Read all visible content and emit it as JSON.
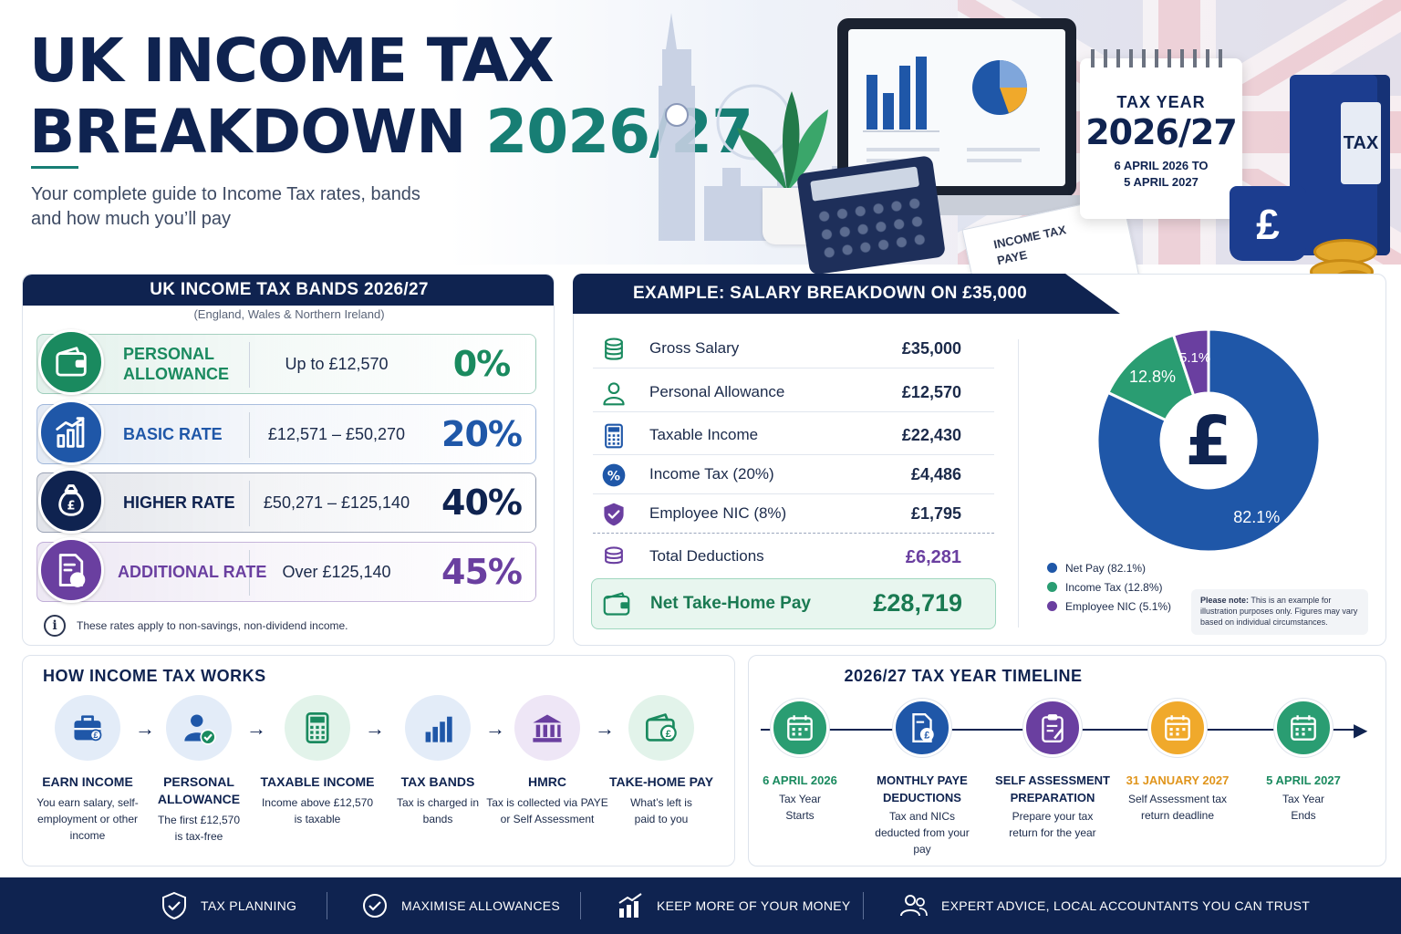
{
  "header": {
    "title_line1": "UK INCOME TAX",
    "title_line2": "BREAKDOWN",
    "title_year": "2026/27",
    "subtitle": "Your complete guide to Income Tax rates, bands and how much you’ll pay"
  },
  "illustration": {
    "calendar_title": "TAX YEAR",
    "calendar_year": "2026/27",
    "calendar_range_1": "6 APRIL 2026 TO",
    "calendar_range_2": "5 APRIL 2027",
    "binder_label": "TAX",
    "mug_symbol": "£",
    "coin_symbol": "£",
    "paper_line1": "INCOME TAX",
    "paper_line2": "PAYE"
  },
  "bands": {
    "title": "UK INCOME TAX BANDS 2026/27",
    "subtitle": "(England, Wales & Northern Ireland)",
    "rows": [
      {
        "name_1": "PERSONAL",
        "name_2": "ALLOWANCE",
        "range": "Up to £12,570",
        "rate": "0%",
        "color": "#1a8a5f",
        "icon": "wallet-icon"
      },
      {
        "name_1": "BASIC RATE",
        "name_2": "",
        "range": "£12,571 – £50,270",
        "rate": "20%",
        "color": "#1f57a8",
        "icon": "chart-growth-icon"
      },
      {
        "name_1": "HIGHER RATE",
        "name_2": "",
        "range": "£50,271 – £125,140",
        "rate": "40%",
        "color": "#0f2350",
        "icon": "money-bag-icon"
      },
      {
        "name_1": "ADDITIONAL RATE",
        "name_2": "",
        "range": "Over £125,140",
        "rate": "45%",
        "color": "#6a3fa0",
        "icon": "document-percent-icon"
      }
    ],
    "note": "These rates apply to non-savings, non-dividend income."
  },
  "example": {
    "title": "EXAMPLE: SALARY BREAKDOWN ON £35,000",
    "rows": [
      {
        "label": "Gross Salary",
        "value": "£35,000",
        "icon": "coins-icon"
      },
      {
        "label": "Personal Allowance",
        "value": "£12,570",
        "icon": "person-icon"
      },
      {
        "label": "Taxable Income",
        "value": "£22,430",
        "icon": "calculator-icon"
      },
      {
        "label": "Income Tax (20%)",
        "value": "£4,486",
        "icon": "percent-icon"
      },
      {
        "label": "Employee NIC (8%)",
        "value": "£1,795",
        "icon": "shield-check-icon"
      },
      {
        "label": "Total Deductions",
        "value": "£6,281",
        "icon": "coin-stack-icon"
      }
    ],
    "net_label": "Net Take-Home Pay",
    "net_value": "£28,719",
    "donut_center": "£",
    "note_bold": "Please note:",
    "note_text": "This is an example for illustration purposes only. Figures may vary based on individual circumstances."
  },
  "chart_data": {
    "type": "pie",
    "donut": true,
    "slices": [
      {
        "label": "Net Pay (82.1%)",
        "value": 82.1,
        "display": "82.1%",
        "color": "#1f57a8"
      },
      {
        "label": "Income Tax (12.8%)",
        "value": 12.8,
        "display": "12.8%",
        "color": "#2a9d72"
      },
      {
        "label": "Employee NIC (5.1%)",
        "value": 5.1,
        "display": "5.1%",
        "color": "#6a3fa0"
      }
    ],
    "legend_position": "bottom-left"
  },
  "how": {
    "title": "HOW INCOME TAX WORKS",
    "steps": [
      {
        "title": "EARN INCOME",
        "desc": "You earn salary, self-employment or other income",
        "color": "#1f57a8",
        "bg": "#e3ecf8",
        "icon": "briefcase-icon"
      },
      {
        "title": "PERSONAL ALLOWANCE",
        "desc": "The first £12,570 is tax-free",
        "color": "#1f57a8",
        "bg": "#e3ecf8",
        "icon": "person-check-icon"
      },
      {
        "title": "TAXABLE INCOME",
        "desc": "Income above £12,570 is taxable",
        "color": "#1a8a5f",
        "bg": "#e2f3ea",
        "icon": "calculator-icon"
      },
      {
        "title": "TAX BANDS",
        "desc": "Tax is charged in bands",
        "color": "#1f57a8",
        "bg": "#e3ecf8",
        "icon": "bar-chart-icon"
      },
      {
        "title": "HMRC",
        "desc": "Tax is collected via PAYE or Self Assessment",
        "color": "#6a3fa0",
        "bg": "#eee6f6",
        "icon": "bank-icon"
      },
      {
        "title": "TAKE-HOME PAY",
        "desc": "What’s left is paid to you",
        "color": "#1a8a5f",
        "bg": "#e2f3ea",
        "icon": "wallet-pound-icon"
      }
    ]
  },
  "timeline": {
    "title": "2026/27 TAX YEAR TIMELINE",
    "items": [
      {
        "title": "6 APRIL 2026",
        "desc": "Tax Year Starts",
        "color": "#2a9d72",
        "title_color": "#1a8a5f",
        "icon": "calendar-icon"
      },
      {
        "title": "MONTHLY PAYE DEDUCTIONS",
        "desc": "Tax and NICs deducted from your pay",
        "color": "#1f57a8",
        "title_color": "#0f2350",
        "icon": "document-pound-icon"
      },
      {
        "title": "SELF ASSESSMENT PREPARATION",
        "desc": "Prepare your tax return for the year",
        "color": "#6a3fa0",
        "title_color": "#0f2350",
        "icon": "clipboard-icon"
      },
      {
        "title": "31 JANUARY 2027",
        "desc": "Self Assessment tax return deadline",
        "color": "#f0a92b",
        "title_color": "#e0951c",
        "icon": "calendar-icon"
      },
      {
        "title": "5 APRIL 2027",
        "desc": "Tax Year Ends",
        "color": "#2a9d72",
        "title_color": "#1a8a5f",
        "icon": "calendar-icon"
      }
    ]
  },
  "footer": {
    "items": [
      {
        "label": "TAX PLANNING",
        "icon": "shield-check-icon"
      },
      {
        "label": "MAXIMISE ALLOWANCES",
        "icon": "check-circle-icon"
      },
      {
        "label": "KEEP MORE OF YOUR MONEY",
        "icon": "growth-chart-icon"
      },
      {
        "label": "EXPERT ADVICE, LOCAL ACCOUNTANTS YOU CAN TRUST",
        "icon": "people-icon"
      }
    ]
  }
}
